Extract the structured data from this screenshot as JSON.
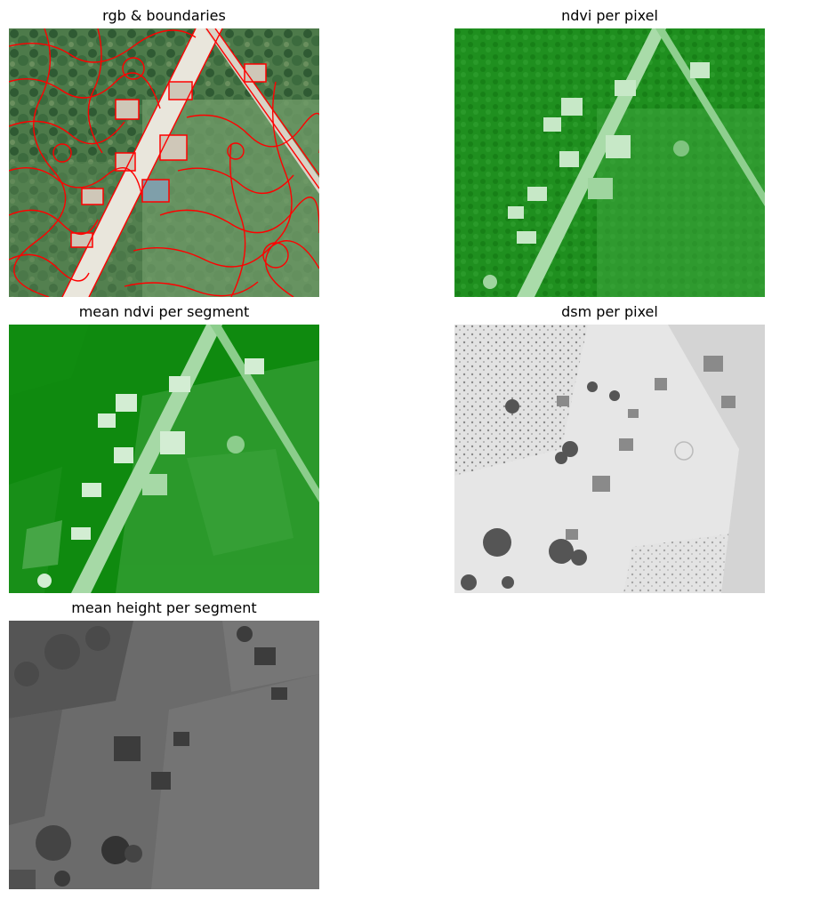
{
  "figure": {
    "panels": [
      {
        "title": "rgb & boundaries"
      },
      {
        "title": "ndvi per pixel"
      },
      {
        "title": "mean ndvi per segment"
      },
      {
        "title": "dsm per pixel"
      },
      {
        "title": "mean height per segment"
      }
    ]
  },
  "colors": {
    "vegetation": "#1e8f1e",
    "road": "#a9dba9",
    "boundary": "#ff0000",
    "dsm_light": "#ececec",
    "dsm_dark": "#3a3a3a",
    "height_bg": "#6b6b6b"
  }
}
